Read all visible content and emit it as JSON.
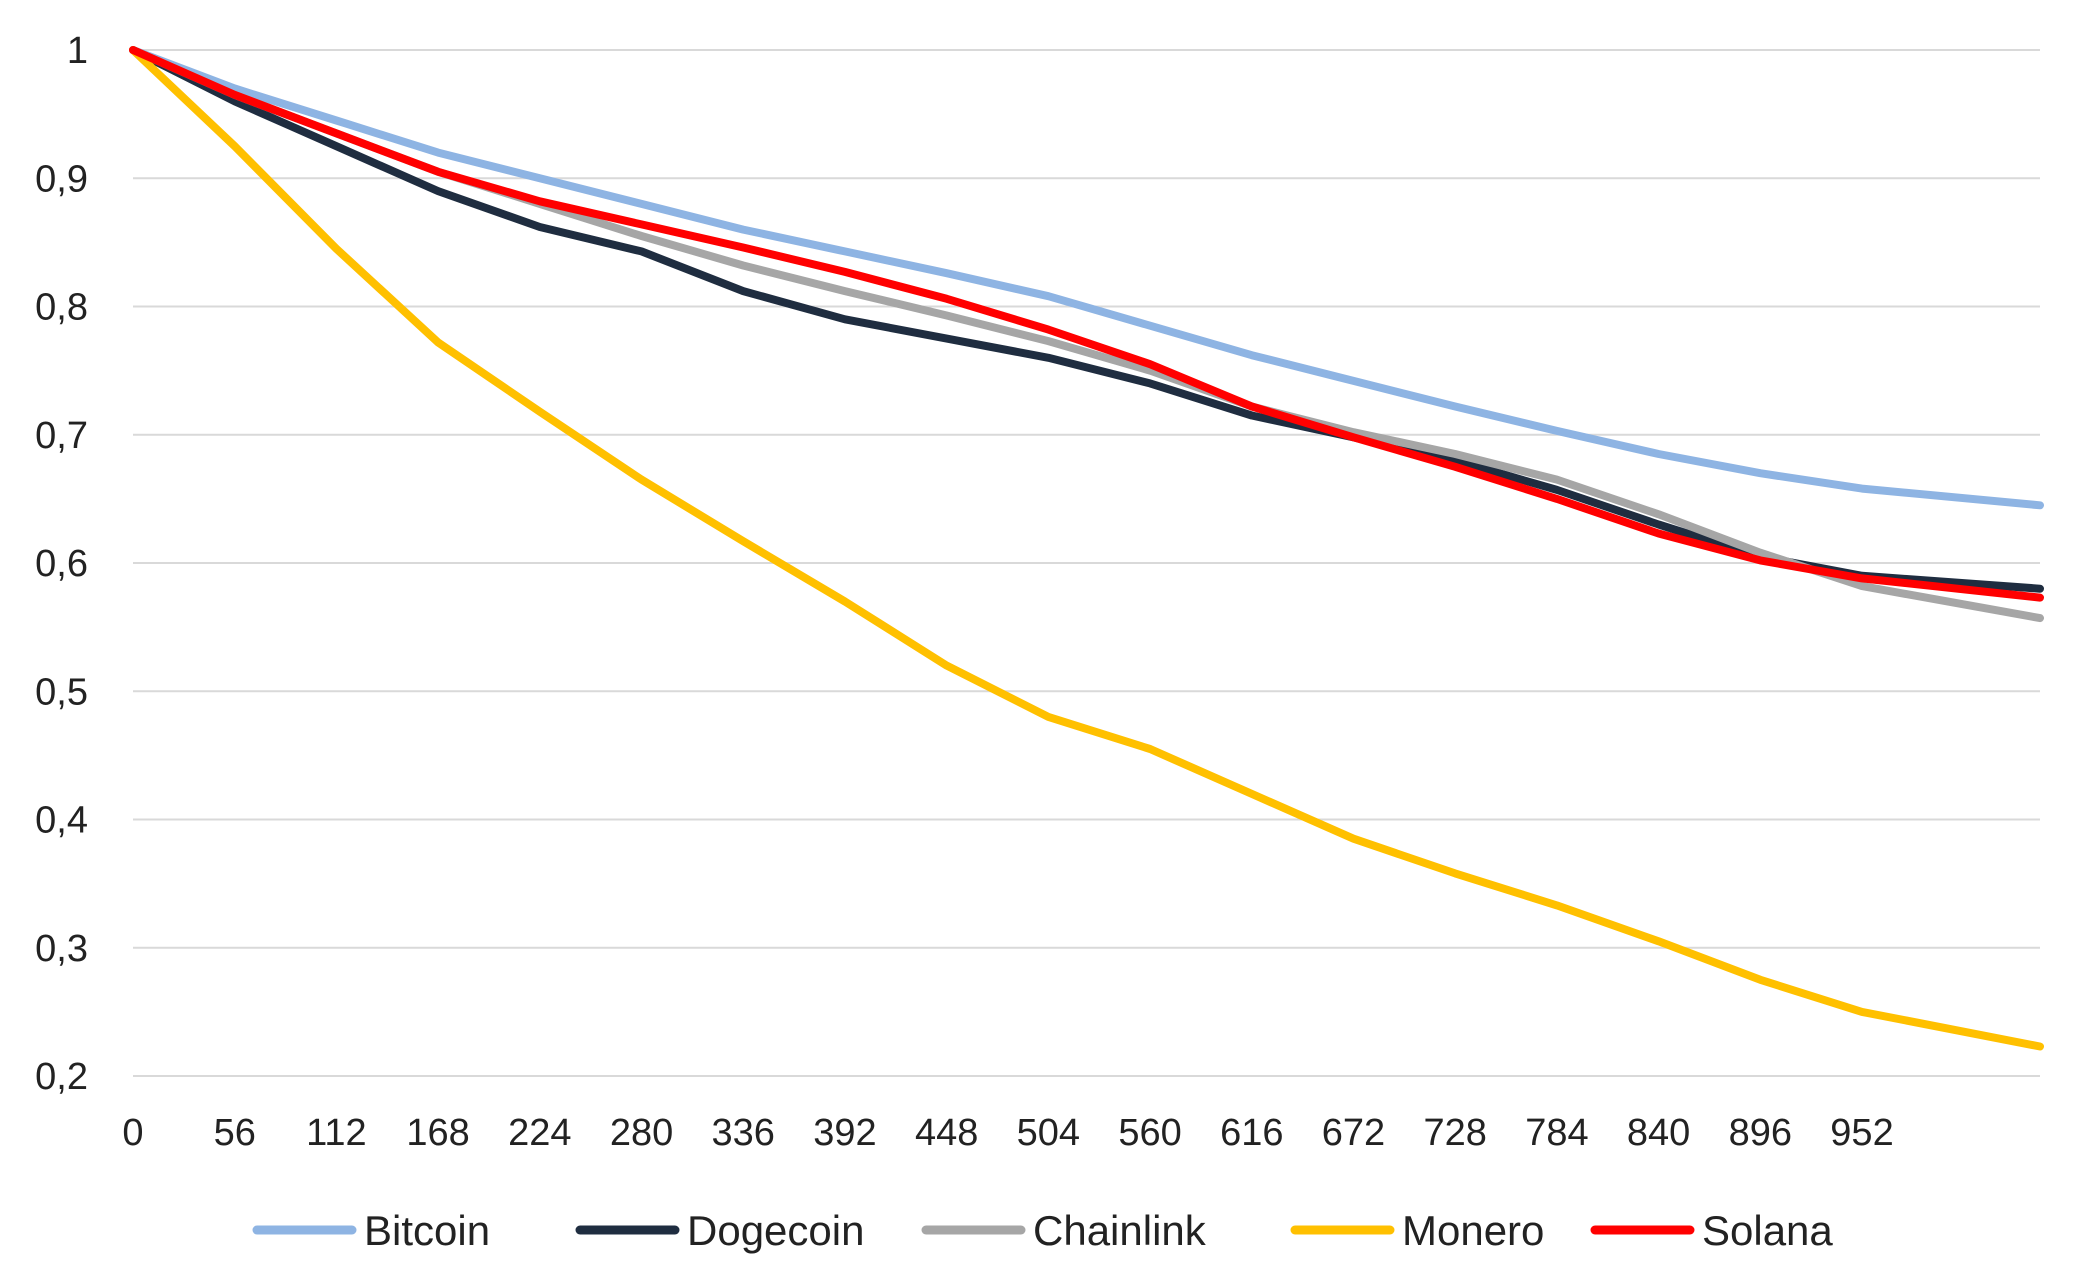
{
  "chart_data": {
    "type": "line",
    "title": "",
    "xlabel": "",
    "ylabel": "",
    "xlim": [
      0,
      1050
    ],
    "ylim": [
      0.2,
      1.0
    ],
    "x_ticks": [
      0,
      56,
      112,
      168,
      224,
      280,
      336,
      392,
      448,
      504,
      560,
      616,
      672,
      728,
      784,
      840,
      896,
      952
    ],
    "y_ticks": [
      0.2,
      0.3,
      0.4,
      0.5,
      0.6,
      0.7,
      0.8,
      0.9,
      1.0
    ],
    "x_tick_labels": [
      "0",
      "56",
      "112",
      "168",
      "224",
      "280",
      "336",
      "392",
      "448",
      "504",
      "560",
      "616",
      "672",
      "728",
      "784",
      "840",
      "896",
      "952"
    ],
    "y_tick_labels": [
      "0,2",
      "0,3",
      "0,4",
      "0,5",
      "0,6",
      "0,7",
      "0,8",
      "0,9",
      "1"
    ],
    "grid": true,
    "legend_position": "bottom",
    "x": [
      0,
      56,
      112,
      168,
      224,
      280,
      336,
      392,
      448,
      504,
      560,
      616,
      672,
      728,
      784,
      840,
      896,
      952,
      1050
    ],
    "series": [
      {
        "name": "Bitcoin",
        "color": "#8eb4e3",
        "values": [
          1.0,
          0.97,
          0.945,
          0.92,
          0.9,
          0.88,
          0.86,
          0.843,
          0.826,
          0.808,
          0.785,
          0.762,
          0.742,
          0.722,
          0.703,
          0.685,
          0.67,
          0.658,
          0.645
        ]
      },
      {
        "name": "Dogecoin",
        "color": "#1f2d40",
        "values": [
          1.0,
          0.96,
          0.925,
          0.89,
          0.862,
          0.843,
          0.812,
          0.79,
          0.775,
          0.76,
          0.74,
          0.715,
          0.698,
          0.68,
          0.657,
          0.63,
          0.605,
          0.59,
          0.58
        ]
      },
      {
        "name": "Chainlink",
        "color": "#a6a6a6",
        "values": [
          1.0,
          0.965,
          0.935,
          0.905,
          0.88,
          0.855,
          0.832,
          0.812,
          0.793,
          0.773,
          0.75,
          0.722,
          0.702,
          0.685,
          0.665,
          0.638,
          0.608,
          0.582,
          0.557
        ]
      },
      {
        "name": "Monero",
        "color": "#ffc000",
        "values": [
          1.0,
          0.925,
          0.845,
          0.772,
          0.718,
          0.665,
          0.617,
          0.57,
          0.52,
          0.48,
          0.455,
          0.42,
          0.385,
          0.358,
          0.333,
          0.305,
          0.275,
          0.25,
          0.223
        ]
      },
      {
        "name": "Solana",
        "color": "#ff0000",
        "values": [
          1.0,
          0.965,
          0.935,
          0.905,
          0.882,
          0.864,
          0.846,
          0.827,
          0.806,
          0.782,
          0.755,
          0.722,
          0.698,
          0.675,
          0.65,
          0.623,
          0.602,
          0.588,
          0.573
        ]
      }
    ]
  }
}
